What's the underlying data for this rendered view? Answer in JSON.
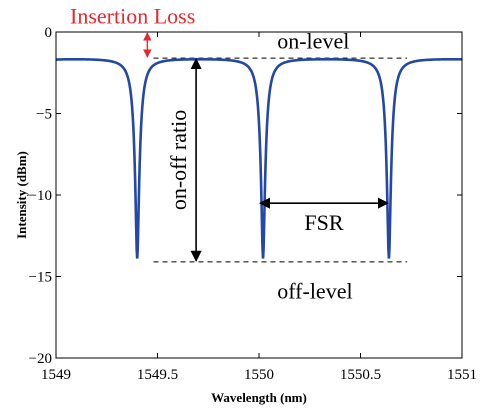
{
  "chart_data": {
    "type": "line",
    "title": "",
    "xlabel": "Wavelength (nm)",
    "ylabel": "Intensity (dBm)",
    "xlim": [
      1549,
      1551
    ],
    "ylim": [
      -20,
      0
    ],
    "xticks": [
      1549,
      1549.5,
      1550,
      1550.5,
      1551
    ],
    "xtick_labels": [
      "1549",
      "1549.5",
      "1550",
      "1550.5",
      "1551"
    ],
    "yticks": [
      0,
      -5,
      -10,
      -15,
      -20
    ],
    "ytick_labels": [
      "0",
      "−5",
      "−10",
      "−15",
      "−20"
    ],
    "grid": false,
    "series": [
      {
        "color": "#2348a8",
        "model": {
          "kind": "periodic-resonance-dips",
          "resonances_nm": [
            1549.4,
            1550.02,
            1550.64
          ],
          "fsr_nm": 0.62,
          "max_dBm": -1.6,
          "min_dBm": -13.9
        }
      }
    ],
    "reference_lines": [
      {
        "y": -1.6,
        "x_range": [
          1549.5,
          1550.7
        ],
        "style": "dashed",
        "label": "on-level"
      },
      {
        "y": -14.1,
        "x_range": [
          1549.5,
          1550.7
        ],
        "style": "dashed",
        "label": "off-level"
      }
    ],
    "annotations": [
      {
        "text": "Insertion Loss",
        "color": "#e8282e",
        "x": 1549,
        "y": 0.4,
        "arrow_between_y": [
          0,
          -1.6
        ],
        "arrow_x": 1549.45
      },
      {
        "text": "on-off ratio",
        "orientation": "vertical",
        "arrow_between_y": [
          -1.6,
          -14.1
        ],
        "arrow_x": 1549.7
      },
      {
        "text": "FSR",
        "arrow_between_x": [
          1550.0,
          1550.64
        ],
        "arrow_y": -10.5
      },
      {
        "text": "on-level",
        "x": 1550.08,
        "y": -0.9
      },
      {
        "text": "off-level",
        "x": 1550.08,
        "y": -15.3
      }
    ]
  }
}
